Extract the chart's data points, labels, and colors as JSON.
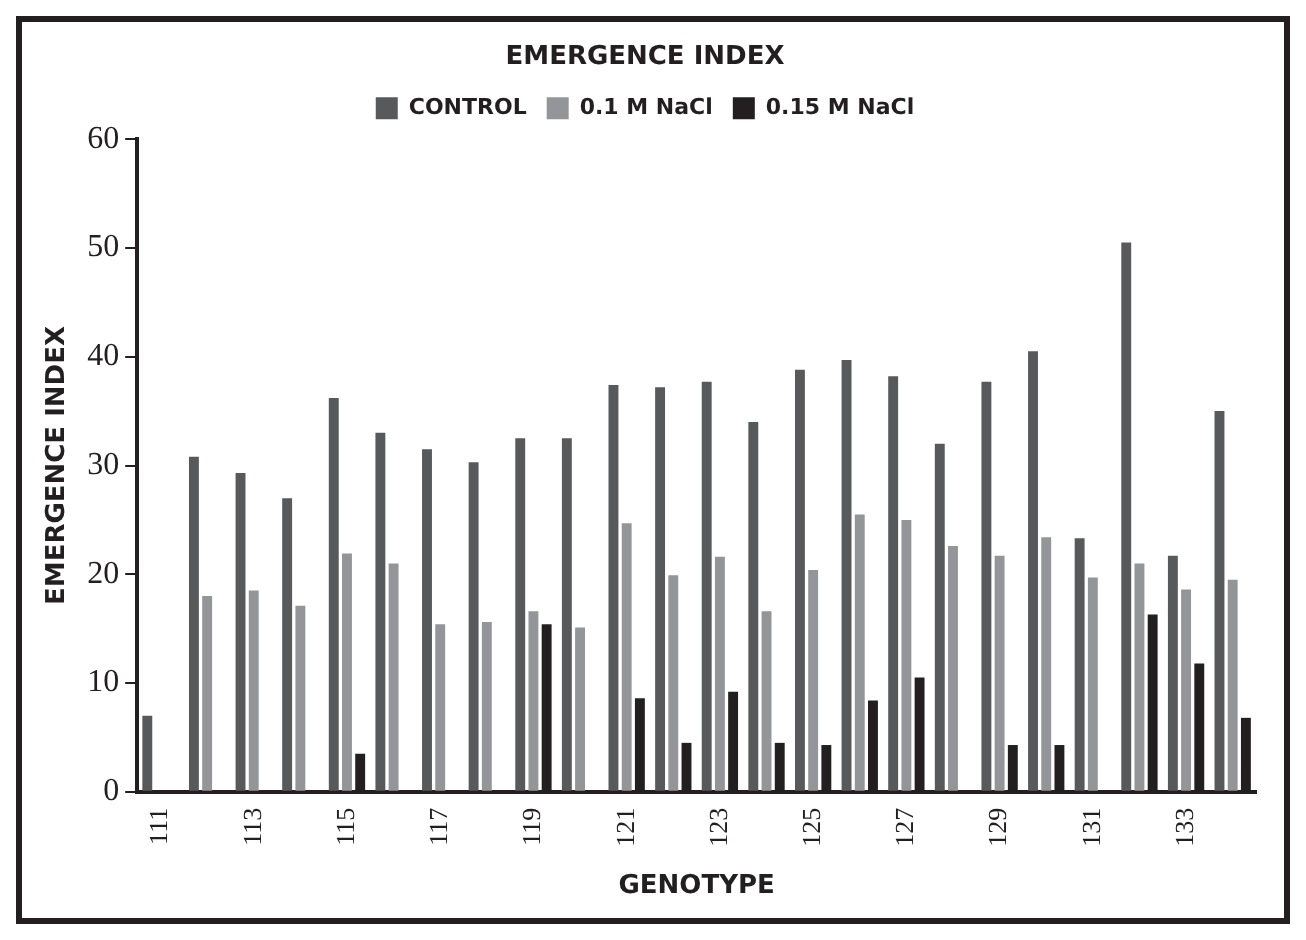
{
  "chart_data": {
    "type": "bar",
    "title": "EMERGENCE INDEX",
    "xlabel": "GENOTYPE",
    "ylabel": "EMERGENCE INDEX",
    "categories": [
      "111",
      null,
      "113",
      null,
      "115",
      null,
      "117",
      null,
      "119",
      null,
      "121",
      null,
      "123",
      null,
      "125",
      null,
      "127",
      null,
      "129",
      null,
      "131",
      null,
      "133",
      null
    ],
    "series": [
      {
        "name": "CONTROL",
        "color": "#58595b",
        "values": [
          7,
          30.8,
          29.3,
          27,
          36.2,
          33,
          31.5,
          30.3,
          32.5,
          32.5,
          37.4,
          37.2,
          37.7,
          34,
          38.8,
          39.7,
          38.2,
          32,
          37.7,
          40.5,
          23.3,
          50.5,
          21.7,
          35
        ]
      },
      {
        "name": "0.1 M NaCl",
        "color": "#949598",
        "values": [
          null,
          18,
          18.5,
          17.1,
          21.9,
          21,
          15.4,
          15.6,
          16.6,
          15.1,
          24.7,
          19.9,
          21.6,
          16.6,
          20.4,
          25.5,
          25,
          22.6,
          21.7,
          23.4,
          19.7,
          21,
          18.6,
          19.5
        ]
      },
      {
        "name": "0.15 M NaCl",
        "color": "#231f20",
        "values": [
          null,
          null,
          null,
          null,
          3.5,
          null,
          null,
          null,
          15.4,
          null,
          8.6,
          4.5,
          9.2,
          4.5,
          4.3,
          8.4,
          10.5,
          null,
          4.3,
          4.3,
          null,
          16.3,
          11.8,
          6.8
        ]
      }
    ],
    "ylim": [
      0,
      60
    ],
    "yticks": [
      0,
      10,
      20,
      30,
      40,
      50,
      60
    ],
    "grid": false,
    "legend": "top"
  }
}
